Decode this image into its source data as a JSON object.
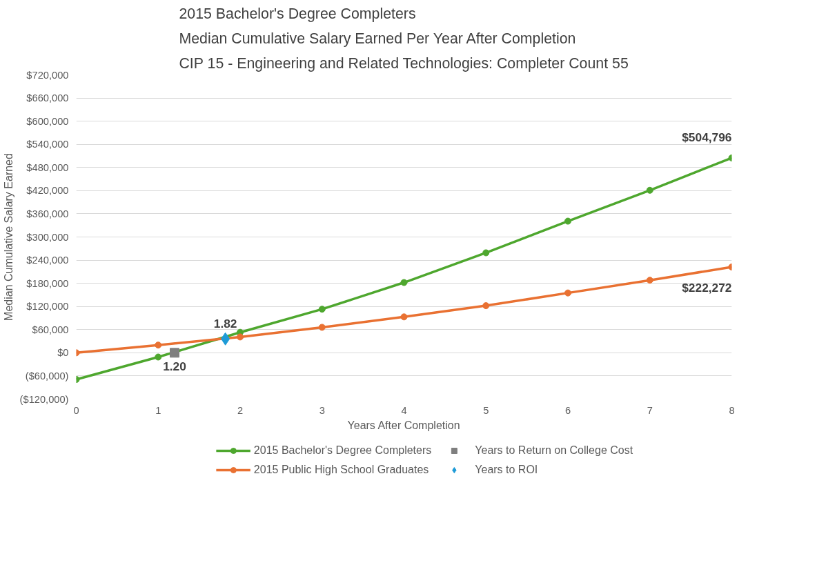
{
  "chart_data": {
    "type": "line",
    "title": "2015 Bachelor's Degree Completers\nMedian Cumulative Salary Earned Per Year After Completion\nCIP 15 - Engineering and Related Technologies: Completer Count 55",
    "xlabel": "Years After Completion",
    "ylabel": "Median Cumulative Salary Earned",
    "x": [
      0,
      1,
      2,
      3,
      4,
      5,
      6,
      7,
      8
    ],
    "series": [
      {
        "name": "2015 Bachelor's Degree Completers",
        "color": "#4ea72e",
        "marker": "circle",
        "values": [
          -69000,
          -11000,
          53000,
          113000,
          182000,
          259000,
          341000,
          421000,
          504796
        ],
        "value_labels": [
          null,
          null,
          null,
          null,
          null,
          null,
          null,
          null,
          "$504,796"
        ]
      },
      {
        "name": "Years to Return on College Cost",
        "type": "scatter",
        "color": "#7f7f7f",
        "marker": "square",
        "x": [
          1.2
        ],
        "values": [
          0
        ]
      },
      {
        "name": "2015 Public High School Graduates",
        "color": "#e97132",
        "marker": "circle",
        "values": [
          0,
          20000,
          41000,
          66000,
          93000,
          122000,
          155000,
          188000,
          222272
        ],
        "value_labels": [
          null,
          null,
          null,
          null,
          null,
          null,
          null,
          null,
          "$222,272"
        ]
      },
      {
        "name": "Years to ROI",
        "type": "scatter",
        "color": "#1e9bd7",
        "marker": "diamond",
        "x": [
          1.82
        ],
        "values": [
          36000
        ]
      }
    ],
    "annotations": [
      {
        "text": "1.20",
        "x": 1.2,
        "y": 0
      },
      {
        "text": "1.82",
        "x": 1.82,
        "y": 36000
      }
    ],
    "xlim": [
      0,
      8
    ],
    "xticks": [
      0,
      1,
      2,
      3,
      4,
      5,
      6,
      7,
      8
    ],
    "ylim": [
      -120000,
      720000
    ],
    "yticks": [
      {
        "value": -120000,
        "label": "($120,000)"
      },
      {
        "value": -60000,
        "label": "($60,000)"
      },
      {
        "value": 0,
        "label": "$0"
      },
      {
        "value": 60000,
        "label": "$60,000"
      },
      {
        "value": 120000,
        "label": "$120,000"
      },
      {
        "value": 180000,
        "label": "$180,000"
      },
      {
        "value": 240000,
        "label": "$240,000"
      },
      {
        "value": 300000,
        "label": "$300,000"
      },
      {
        "value": 360000,
        "label": "$360,000"
      },
      {
        "value": 420000,
        "label": "$420,000"
      },
      {
        "value": 480000,
        "label": "$480,000"
      },
      {
        "value": 540000,
        "label": "$540,000"
      },
      {
        "value": 600000,
        "label": "$600,000"
      },
      {
        "value": 660000,
        "label": "$660,000"
      },
      {
        "value": 720000,
        "label": "$720,000"
      }
    ],
    "grid": "y",
    "legend": "bottom",
    "line_style": "solid"
  }
}
